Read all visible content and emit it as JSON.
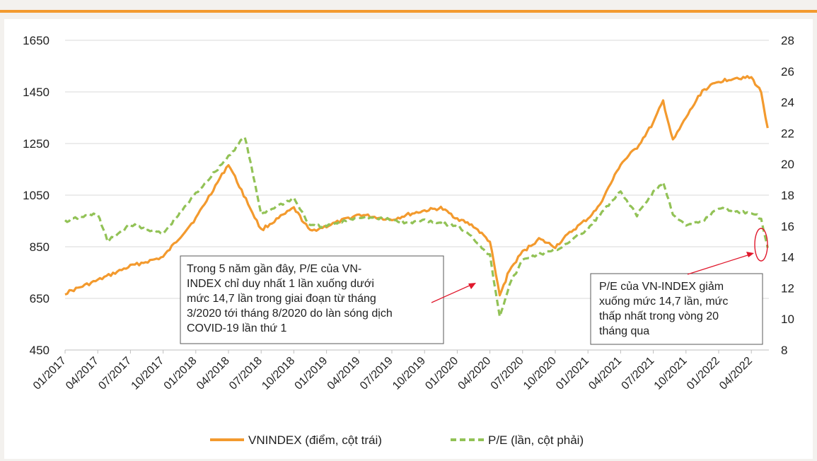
{
  "chart_data": {
    "type": "line",
    "x_ticks": [
      "01/2017",
      "04/2017",
      "07/2017",
      "10/2017",
      "01/2018",
      "04/2018",
      "07/2018",
      "10/2018",
      "01/2019",
      "04/2019",
      "07/2019",
      "10/2019",
      "01/2020",
      "04/2020",
      "07/2020",
      "10/2020",
      "01/2021",
      "04/2021",
      "07/2021",
      "10/2021",
      "01/2022",
      "04/2022"
    ],
    "y_left": {
      "min": 450,
      "max": 1650,
      "ticks": [
        "1650",
        "1450",
        "1250",
        "1050",
        "850",
        "650",
        "450"
      ]
    },
    "y_right": {
      "min": 8,
      "max": 28,
      "ticks": [
        "28",
        "26",
        "24",
        "22",
        "20",
        "18",
        "16",
        "14",
        "12",
        "10",
        "8"
      ]
    },
    "grid": true,
    "legend_position": "bottom",
    "series": [
      {
        "name": "VNINDEX (điểm, cột trái)",
        "color": "#f39a2e",
        "style": "solid",
        "axis": "left",
        "x": [
          0,
          1,
          2,
          3,
          4,
          5,
          6,
          7,
          7.5,
          8,
          9,
          10,
          10.5,
          11,
          11.5,
          12,
          12.5,
          13,
          13.3,
          13.6,
          14,
          14.5,
          15,
          15.5,
          16,
          16.3,
          16.7,
          17,
          17.5,
          18,
          18.3,
          18.6,
          19,
          19.5,
          20,
          20.5,
          21,
          21.3,
          21.5
        ],
        "values": [
          670,
          720,
          775,
          810,
          960,
          1170,
          915,
          1000,
          910,
          930,
          975,
          955,
          975,
          990,
          1000,
          960,
          930,
          870,
          660,
          760,
          830,
          880,
          850,
          910,
          960,
          1000,
          1095,
          1170,
          1235,
          1330,
          1415,
          1260,
          1350,
          1455,
          1490,
          1505,
          1505,
          1450,
          1310
        ]
      },
      {
        "name": "P/E (lần, cột phải)",
        "color": "#92c256",
        "style": "dashed",
        "axis": "right",
        "x": [
          0,
          0.5,
          1,
          1.3,
          1.8,
          2,
          3,
          4,
          5,
          5.5,
          6,
          7,
          7.5,
          8,
          9,
          10,
          10.5,
          11,
          11.5,
          12,
          12.5,
          13,
          13.3,
          13.6,
          14,
          14.5,
          15,
          15.5,
          16,
          16.3,
          16.7,
          17,
          17.5,
          18,
          18.3,
          18.6,
          19,
          19.5,
          20,
          20.5,
          21,
          21.3,
          21.5
        ],
        "values": [
          16.3,
          16.6,
          16.8,
          15.0,
          15.8,
          16.1,
          15.5,
          18.1,
          20.5,
          21.8,
          16.8,
          17.8,
          16.0,
          16.0,
          16.6,
          16.4,
          16.2,
          16.4,
          16.2,
          16.0,
          15.2,
          14.1,
          10.2,
          12.2,
          13.8,
          14.2,
          14.4,
          15.1,
          15.8,
          16.6,
          17.5,
          18.2,
          16.7,
          18.2,
          18.8,
          16.8,
          16.0,
          16.3,
          17.2,
          16.9,
          16.9,
          16.5,
          14.6
        ]
      }
    ],
    "annotations": [
      "Trong 5 năm gần đây, P/E của VN-INDEX chỉ duy nhất 1 lần xuống dưới mức 14,7 lần trong giai đoạn từ tháng 3/2020 tới tháng 8/2020 do làn sóng dịch COVID-19 lần thứ 1",
      "P/E của VN-INDEX giảm xuống mức 14,7 lần, mức thấp nhất trong vòng 20 tháng qua"
    ]
  }
}
